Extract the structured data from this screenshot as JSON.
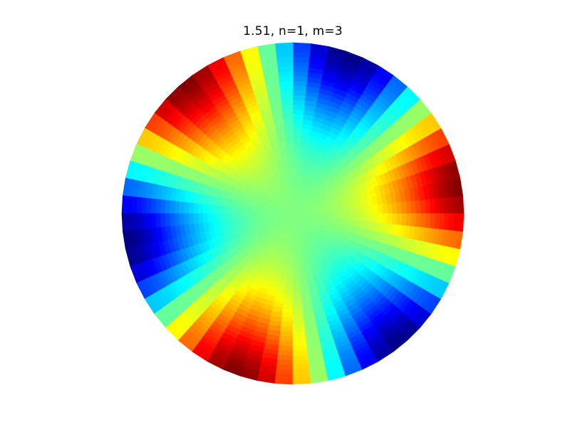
{
  "chart_data": {
    "type": "heatmap",
    "title": "1.51, n=1, m=3",
    "xlabel": "",
    "ylabel": "",
    "axes_visible": false,
    "grid": false,
    "legend": "none",
    "colormap": "jet",
    "domain": "unit-disk",
    "mode": {
      "n": 1,
      "m": 3
    },
    "value_range": [
      -1,
      1
    ],
    "center_value": 0,
    "angular_samples": 60,
    "radial_samples": 36,
    "max_angles_deg": [
      10,
      130,
      250
    ],
    "min_angles_deg": [
      70,
      190,
      310
    ]
  }
}
